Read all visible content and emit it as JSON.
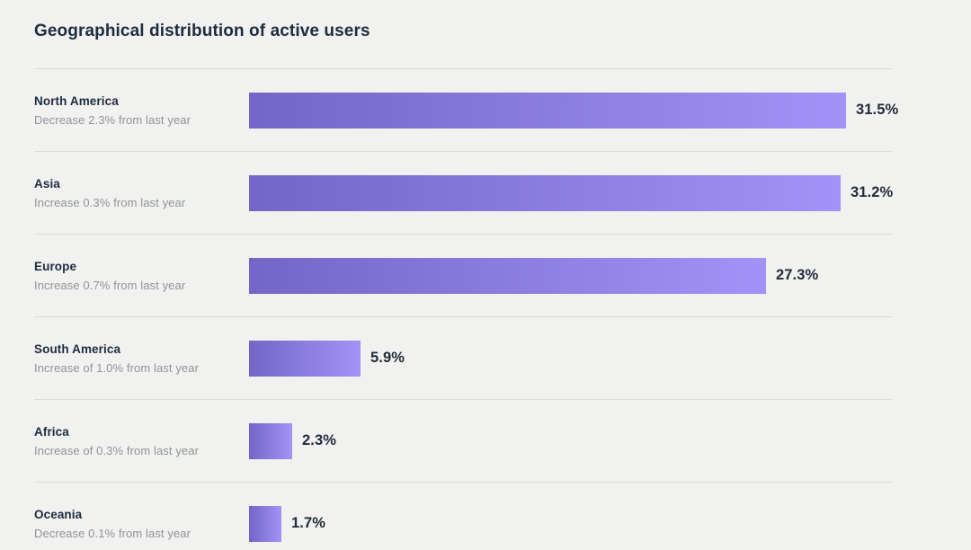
{
  "chart_data": {
    "type": "bar",
    "orientation": "horizontal",
    "title": "Geographical distribution of active users",
    "value_unit": "%",
    "xlim": [
      0,
      34
    ],
    "grid": false,
    "legend": false,
    "bar_gradient": [
      "#7366c7",
      "#a392f7"
    ],
    "max_value_for_scale": 31.5,
    "categories": [
      "North America",
      "Asia",
      "Europe",
      "South America",
      "Africa",
      "Oceania"
    ],
    "values": [
      31.5,
      31.2,
      27.3,
      5.9,
      2.3,
      1.7
    ],
    "rows": [
      {
        "region": "North America",
        "change": "Decrease 2.3% from last year",
        "value": 31.5,
        "value_label": "31.5%"
      },
      {
        "region": "Asia",
        "change": "Increase 0.3% from last year",
        "value": 31.2,
        "value_label": "31.2%"
      },
      {
        "region": "Europe",
        "change": "Increase 0.7% from last year",
        "value": 27.3,
        "value_label": "27.3%"
      },
      {
        "region": "South America",
        "change": "Increase of 1.0% from last year",
        "value": 5.9,
        "value_label": "5.9%"
      },
      {
        "region": "Africa",
        "change": "Increase of 0.3% from last year",
        "value": 2.3,
        "value_label": "2.3%"
      },
      {
        "region": "Oceania",
        "change": "Decrease 0.1% from last year",
        "value": 1.7,
        "value_label": "1.7%"
      }
    ]
  },
  "colors": {
    "background": "#f1f1ef",
    "title_text": "#1e2c40",
    "label_text": "#1e2c40",
    "change_text": "#8e939b",
    "value_text": "#212b3b",
    "divider": "#dcdbd8",
    "bar_gradient_start": "#7366c7",
    "bar_gradient_end": "#a392f7"
  }
}
